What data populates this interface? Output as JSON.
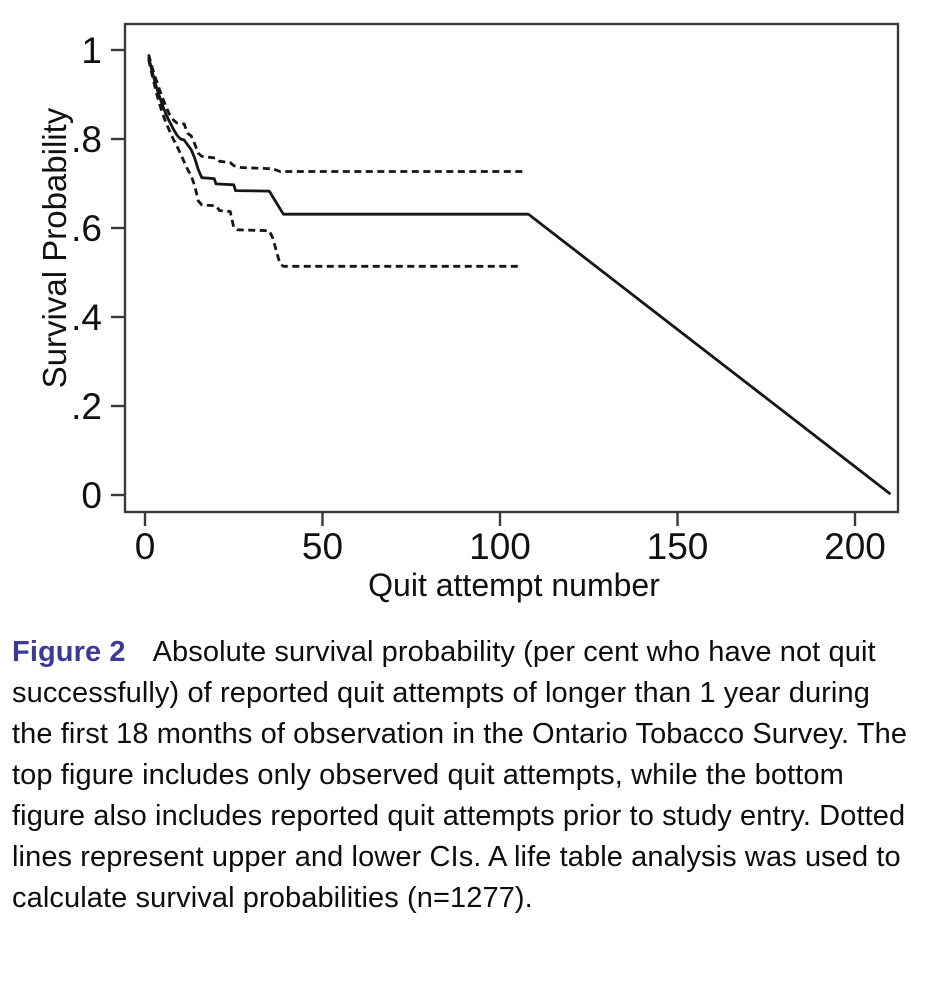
{
  "caption": {
    "label": "Figure 2",
    "text": "Absolute survival probability (per cent who have not quit successfully) of reported quit attempts of longer than 1 year during the first 18 months of observation in the Ontario Tobacco Survey. The top figure includes only observed quit attempts, while the bottom figure also includes reported quit attempts prior to study entry. Dotted lines represent upper and lower CIs. A life table analysis was used to calculate survival probabilities (n=1277)."
  },
  "colors": {
    "figure_label": "#3c3a96",
    "line": "#161616",
    "axis": "#3a3a3a",
    "text": "#111111",
    "background": "#ffffff"
  },
  "chart_data": {
    "type": "line",
    "title": "",
    "xlabel": "Quit attempt number",
    "ylabel": "Survival Probability",
    "xlim": [
      0,
      212
    ],
    "ylim": [
      0,
      1
    ],
    "x_ticks": [
      0,
      50,
      100,
      150,
      200
    ],
    "x_tick_labels": [
      "0",
      "50",
      "100",
      "150",
      "200"
    ],
    "y_ticks": [
      1,
      0.8,
      0.6,
      0.4,
      0.2,
      0
    ],
    "y_tick_labels": [
      "1",
      ".8",
      ".6",
      ".4",
      ".2",
      "0"
    ],
    "grid": false,
    "legend_position": "none",
    "series": [
      {
        "name": "Upper CI",
        "style": "dashed",
        "points": [
          [
            1,
            0.99
          ],
          [
            2,
            0.961
          ],
          [
            3,
            0.936
          ],
          [
            4,
            0.913
          ],
          [
            5,
            0.891
          ],
          [
            6,
            0.871
          ],
          [
            7,
            0.854
          ],
          [
            8,
            0.843
          ],
          [
            9,
            0.836
          ],
          [
            11,
            0.834
          ],
          [
            12,
            0.813
          ],
          [
            13,
            0.807
          ],
          [
            14,
            0.789
          ],
          [
            15,
            0.768
          ],
          [
            16,
            0.761
          ],
          [
            20,
            0.757
          ],
          [
            21,
            0.75
          ],
          [
            24,
            0.747
          ],
          [
            25,
            0.74
          ],
          [
            27,
            0.736
          ],
          [
            36,
            0.733
          ],
          [
            38,
            0.727
          ],
          [
            107,
            0.727
          ]
        ]
      },
      {
        "name": "Lower CI",
        "style": "dashed",
        "points": [
          [
            1,
            0.979
          ],
          [
            2,
            0.944
          ],
          [
            3,
            0.91
          ],
          [
            4,
            0.881
          ],
          [
            5,
            0.856
          ],
          [
            6,
            0.835
          ],
          [
            7,
            0.817
          ],
          [
            8,
            0.799
          ],
          [
            9,
            0.784
          ],
          [
            10,
            0.767
          ],
          [
            11,
            0.749
          ],
          [
            12,
            0.732
          ],
          [
            13,
            0.717
          ],
          [
            14,
            0.695
          ],
          [
            15,
            0.661
          ],
          [
            16,
            0.652
          ],
          [
            20,
            0.65
          ],
          [
            21,
            0.639
          ],
          [
            24,
            0.637
          ],
          [
            25,
            0.601
          ],
          [
            26,
            0.596
          ],
          [
            35,
            0.594
          ],
          [
            36,
            0.577
          ],
          [
            38,
            0.52
          ],
          [
            39,
            0.514
          ],
          [
            105,
            0.514
          ]
        ]
      },
      {
        "name": "Survival probability",
        "style": "solid",
        "points": [
          [
            1,
            0.985
          ],
          [
            2,
            0.952
          ],
          [
            3,
            0.922
          ],
          [
            4,
            0.897
          ],
          [
            5,
            0.874
          ],
          [
            6,
            0.854
          ],
          [
            7,
            0.838
          ],
          [
            8,
            0.822
          ],
          [
            9,
            0.809
          ],
          [
            10,
            0.8
          ],
          [
            11,
            0.798
          ],
          [
            12,
            0.787
          ],
          [
            13,
            0.776
          ],
          [
            14,
            0.757
          ],
          [
            15,
            0.731
          ],
          [
            16,
            0.713
          ],
          [
            19.5,
            0.711
          ],
          [
            20,
            0.699
          ],
          [
            25,
            0.697
          ],
          [
            25.5,
            0.684
          ],
          [
            35,
            0.683
          ],
          [
            39,
            0.631
          ],
          [
            108,
            0.631
          ],
          [
            210,
            0.002
          ]
        ]
      }
    ]
  }
}
